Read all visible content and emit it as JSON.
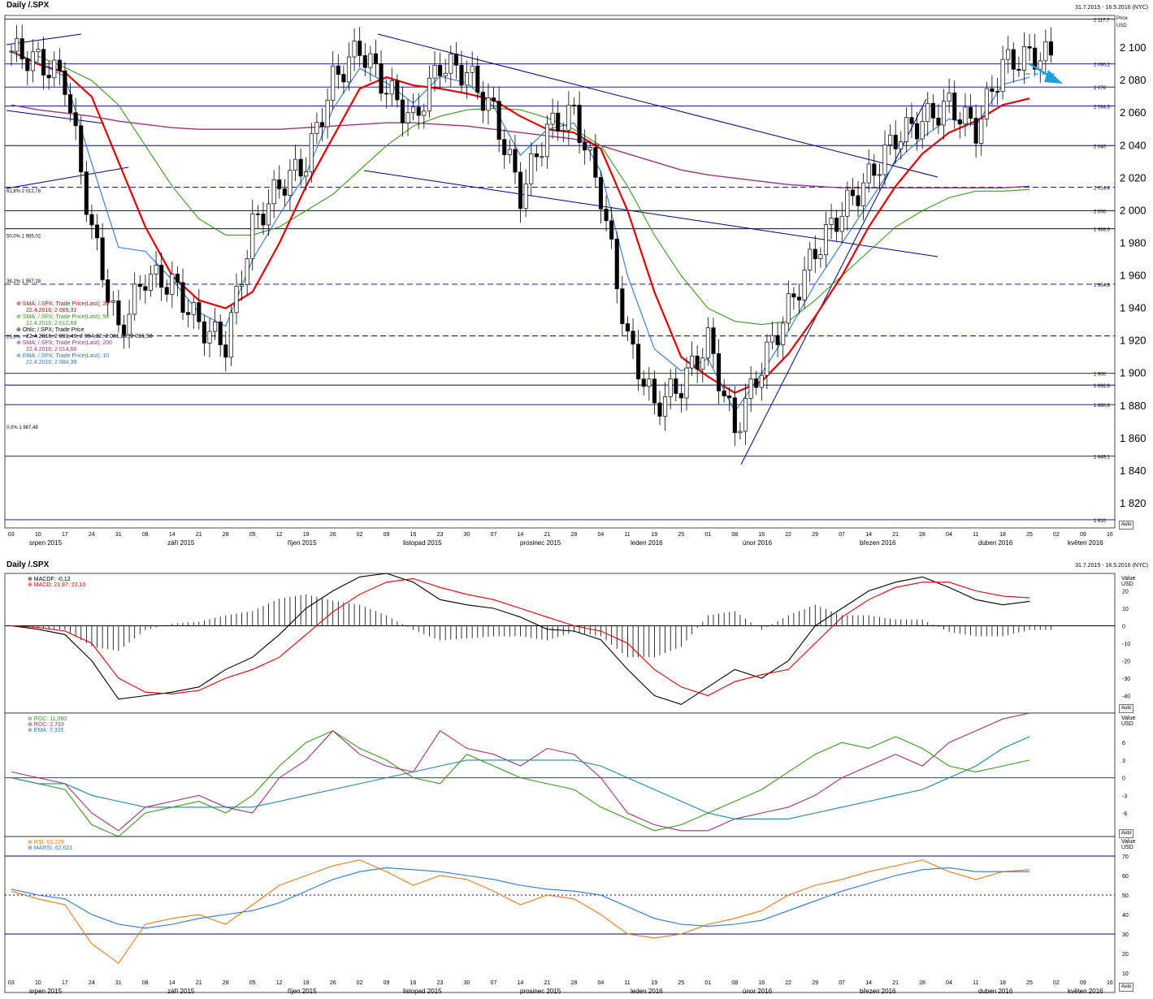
{
  "window": {
    "title": "Daily /.SPX",
    "date_range": "31.7.2015 - 16.5.2016 (NYC)",
    "auto_label": "Auto"
  },
  "price_panel": {
    "axis_unit": "Price\nUSD",
    "y_ticks": [
      "2 100",
      "2 080",
      "2 060",
      "2 040",
      "2 020",
      "2 000",
      "1 980",
      "1 960",
      "1 940",
      "1 920",
      "1 900",
      "1 880",
      "1 860",
      "1 840",
      "1 820"
    ],
    "level_tags": [
      "2 117,7",
      "2 090,2",
      "2 076",
      "2 064,3",
      "2 040",
      "2 014,4",
      "2 000",
      "1 988,9",
      "1 954,8",
      "1 900",
      "1 892,8",
      "1 880,8",
      "1 849,1",
      "1 810"
    ],
    "fib_labels": [
      "61,8%  2 012,78",
      "50,0%  1 985,02",
      "38,2%  1 957,28",
      "23,6%",
      "0,0%  1 867,48"
    ],
    "legend": [
      {
        "name": "SMA; /.SPX; Trade Price(Last); 20",
        "value": "22.4.2016; 2 069,31",
        "color": "#e00000"
      },
      {
        "name": "SMA; /.SPX; Trade Price(Last); 50",
        "value": "22.4.2016; 2 012,68",
        "color": "#3a9a1a"
      },
      {
        "name": "Ohlc; /.SPX; Trade Price",
        "value": "22.4.2016; 2 091,49; 2 094,32; 2 081,20; 2 091,58",
        "color": "#000000"
      },
      {
        "name": "SMA; /.SPX; Trade Price(Last); 200",
        "value": "22.4.2016; 2 014,66",
        "color": "#a0307a"
      },
      {
        "name": "EMA; /.SPX; Trade Price(Last); 10",
        "value": "22.4.2016; 2 084,39",
        "color": "#2a7ad0"
      }
    ]
  },
  "macd_panel": {
    "legend": [
      "MACDF: -0,12",
      "MACD: 21,97; 22,10"
    ],
    "axis_unit": "Value\nUSD",
    "y_ticks": [
      "20",
      "10",
      "0",
      "-10",
      "-20",
      "-30",
      "-40"
    ]
  },
  "roc_panel": {
    "legend": [
      "ROC: 11,080",
      "ROC: 2,733",
      "EMA: 7,335"
    ],
    "axis_unit": "Value\nUSD",
    "y_ticks": [
      "6",
      "3",
      "0",
      "-3",
      "-6",
      "-9"
    ]
  },
  "rsi_panel": {
    "legend": [
      "RSI: 63,229",
      "MARSI: 62,021"
    ],
    "axis_unit": "Value\nUSD",
    "y_ticks": [
      "70",
      "60",
      "50",
      "40",
      "30",
      "20",
      "10"
    ]
  },
  "x_axis": {
    "day_ticks": [
      "03",
      "10",
      "17",
      "24",
      "31",
      "08",
      "14",
      "21",
      "28",
      "05",
      "12",
      "19",
      "26",
      "02",
      "09",
      "16",
      "23",
      "30",
      "07",
      "14",
      "21",
      "28",
      "04",
      "11",
      "19",
      "25",
      "01",
      "08",
      "16",
      "22",
      "29",
      "07",
      "14",
      "21",
      "28",
      "04",
      "11",
      "18",
      "25",
      "02",
      "09",
      "16"
    ],
    "month_labels": [
      "srpen 2015",
      "září 2015",
      "říjen 2015",
      "listopad 2015",
      "prosinec 2015",
      "leden 2016",
      "únor 2016",
      "březen 2016",
      "duben 2016",
      "květen 2016"
    ],
    "month_labels_bottom": [
      "srpen 2015",
      "září 2015",
      "říjen 2015",
      "listopad 2015",
      "prosinec 2015",
      "leden 2016",
      "únor 2016",
      "březen 2016",
      "duben 2016",
      "květen 2016"
    ]
  },
  "chart_data": [
    {
      "type": "candlestick",
      "title": "Daily /.SPX",
      "ylabel": "Price USD",
      "ylim": [
        1805,
        2120
      ],
      "weeks": [
        "03",
        "10",
        "17",
        "24",
        "31",
        "08",
        "14",
        "21",
        "28",
        "05",
        "12",
        "19",
        "26",
        "02",
        "09",
        "16",
        "23",
        "30",
        "07",
        "14",
        "21",
        "28",
        "04",
        "11",
        "19",
        "25",
        "01",
        "08",
        "16",
        "22",
        "29",
        "07",
        "14",
        "21",
        "28",
        "04",
        "11",
        "18",
        "25",
        "02",
        "09",
        "16"
      ],
      "weekly_close": [
        2098,
        2092,
        2080,
        1988,
        1925,
        1960,
        1955,
        1930,
        1918,
        1990,
        2015,
        2030,
        2080,
        2100,
        2075,
        2055,
        2090,
        2085,
        2060,
        2010,
        2050,
        2060,
        2010,
        1920,
        1880,
        1893,
        1920,
        1865,
        1905,
        1940,
        1975,
        2000,
        2020,
        2045,
        2055,
        2065,
        2050,
        2090,
        2095,
        null,
        null,
        null
      ],
      "sma20_weekly": [
        2098,
        2090,
        2085,
        2070,
        2030,
        1990,
        1960,
        1945,
        1940,
        1950,
        1980,
        2015,
        2045,
        2075,
        2082,
        2077,
        2075,
        2072,
        2068,
        2058,
        2050,
        2048,
        2038,
        2000,
        1950,
        1910,
        1898,
        1888,
        1895,
        1912,
        1935,
        1960,
        1990,
        2015,
        2035,
        2048,
        2055,
        2065,
        2069,
        null,
        null,
        null
      ],
      "sma50_weekly": [
        null,
        2095,
        2088,
        2080,
        2065,
        2040,
        2015,
        1995,
        1985,
        1985,
        1990,
        2000,
        2010,
        2025,
        2040,
        2052,
        2058,
        2062,
        2063,
        2062,
        2057,
        2050,
        2040,
        2015,
        1985,
        1960,
        1940,
        1932,
        1930,
        1932,
        1945,
        1960,
        1975,
        1990,
        2000,
        2008,
        2012,
        2012,
        2013,
        null,
        null,
        null
      ],
      "sma200_weekly": [
        2065,
        2062,
        2060,
        2058,
        2055,
        2053,
        2051,
        2050,
        2050,
        2050,
        2050,
        2051,
        2052,
        2053,
        2054,
        2054,
        2053,
        2052,
        2050,
        2048,
        2046,
        2044,
        2040,
        2035,
        2030,
        2025,
        2022,
        2020,
        2018,
        2016,
        2015,
        2014,
        2014,
        2014,
        2014,
        2014,
        2014,
        2014,
        2015,
        null,
        null,
        null
      ],
      "levels": [
        2117.7,
        2090.2,
        2076,
        2064.3,
        2040,
        2014.4,
        2000,
        1988.9,
        1954.8,
        1900,
        1892.8,
        1880.8,
        1849.1,
        1810
      ]
    },
    {
      "type": "line",
      "title": "MACD",
      "ylim": [
        -50,
        30
      ],
      "series": [
        {
          "name": "MACD",
          "values": [
            0,
            -2,
            -5,
            -20,
            -42,
            -40,
            -38,
            -35,
            -25,
            -18,
            -5,
            10,
            20,
            28,
            30,
            25,
            15,
            12,
            10,
            5,
            -2,
            -3,
            -8,
            -25,
            -40,
            -45,
            -35,
            -25,
            -30,
            -20,
            0,
            10,
            20,
            25,
            28,
            22,
            15,
            12,
            14,
            null,
            null,
            null
          ]
        },
        {
          "name": "MACD signal",
          "values": [
            0,
            -1,
            -3,
            -10,
            -30,
            -38,
            -39,
            -37,
            -30,
            -25,
            -18,
            -5,
            8,
            18,
            25,
            27,
            22,
            18,
            15,
            10,
            5,
            0,
            -3,
            -10,
            -25,
            -35,
            -40,
            -32,
            -28,
            -25,
            -10,
            5,
            15,
            22,
            25,
            25,
            20,
            17,
            16,
            null,
            null,
            null
          ]
        }
      ]
    },
    {
      "type": "line",
      "title": "ROC",
      "ylim": [
        -10,
        11
      ],
      "series": [
        {
          "name": "ROC",
          "values": [
            0,
            -1,
            -2,
            -8,
            -10,
            -6,
            -5,
            -4,
            -6,
            -3,
            2,
            6,
            8,
            5,
            3,
            0,
            -1,
            4,
            2,
            0,
            -1,
            -2,
            -5,
            -7,
            -9,
            -8,
            -6,
            -4,
            -2,
            1,
            4,
            6,
            5,
            7,
            5,
            2,
            1,
            2,
            3,
            null,
            null,
            null
          ]
        },
        {
          "name": "ROC",
          "values": [
            1,
            0,
            -1,
            -6,
            -9,
            -5,
            -4,
            -3,
            -5,
            -6,
            0,
            3,
            8,
            4,
            2,
            1,
            8,
            5,
            4,
            2,
            5,
            4,
            0,
            -6,
            -8,
            -9,
            -9,
            -7,
            -6,
            -5,
            -3,
            0,
            2,
            4,
            2,
            6,
            8,
            10,
            11,
            null,
            null,
            null
          ]
        },
        {
          "name": "EMA",
          "values": [
            0,
            -1,
            -1,
            -3,
            -4,
            -5,
            -5,
            -5,
            -5,
            -5,
            -4,
            -3,
            -2,
            -1,
            0,
            1,
            2,
            3,
            3,
            3,
            3,
            3,
            2,
            0,
            -2,
            -4,
            -6,
            -7,
            -7,
            -7,
            -6,
            -5,
            -4,
            -3,
            -2,
            0,
            2,
            5,
            7,
            null,
            null,
            null
          ]
        }
      ]
    },
    {
      "type": "line",
      "title": "RSI",
      "ylim": [
        0,
        80
      ],
      "series": [
        {
          "name": "RSI",
          "values": [
            52,
            48,
            45,
            25,
            15,
            35,
            38,
            40,
            35,
            45,
            55,
            60,
            65,
            68,
            62,
            55,
            60,
            58,
            52,
            45,
            50,
            48,
            40,
            30,
            28,
            30,
            35,
            38,
            42,
            50,
            55,
            58,
            62,
            65,
            68,
            62,
            58,
            62,
            63,
            null,
            null,
            null
          ]
        },
        {
          "name": "MARSI",
          "values": [
            53,
            50,
            48,
            40,
            35,
            33,
            35,
            38,
            40,
            42,
            46,
            52,
            58,
            62,
            64,
            63,
            62,
            60,
            58,
            55,
            53,
            52,
            50,
            44,
            38,
            35,
            34,
            35,
            37,
            42,
            47,
            52,
            56,
            60,
            63,
            64,
            62,
            62,
            62,
            null,
            null,
            null
          ]
        }
      ]
    }
  ]
}
